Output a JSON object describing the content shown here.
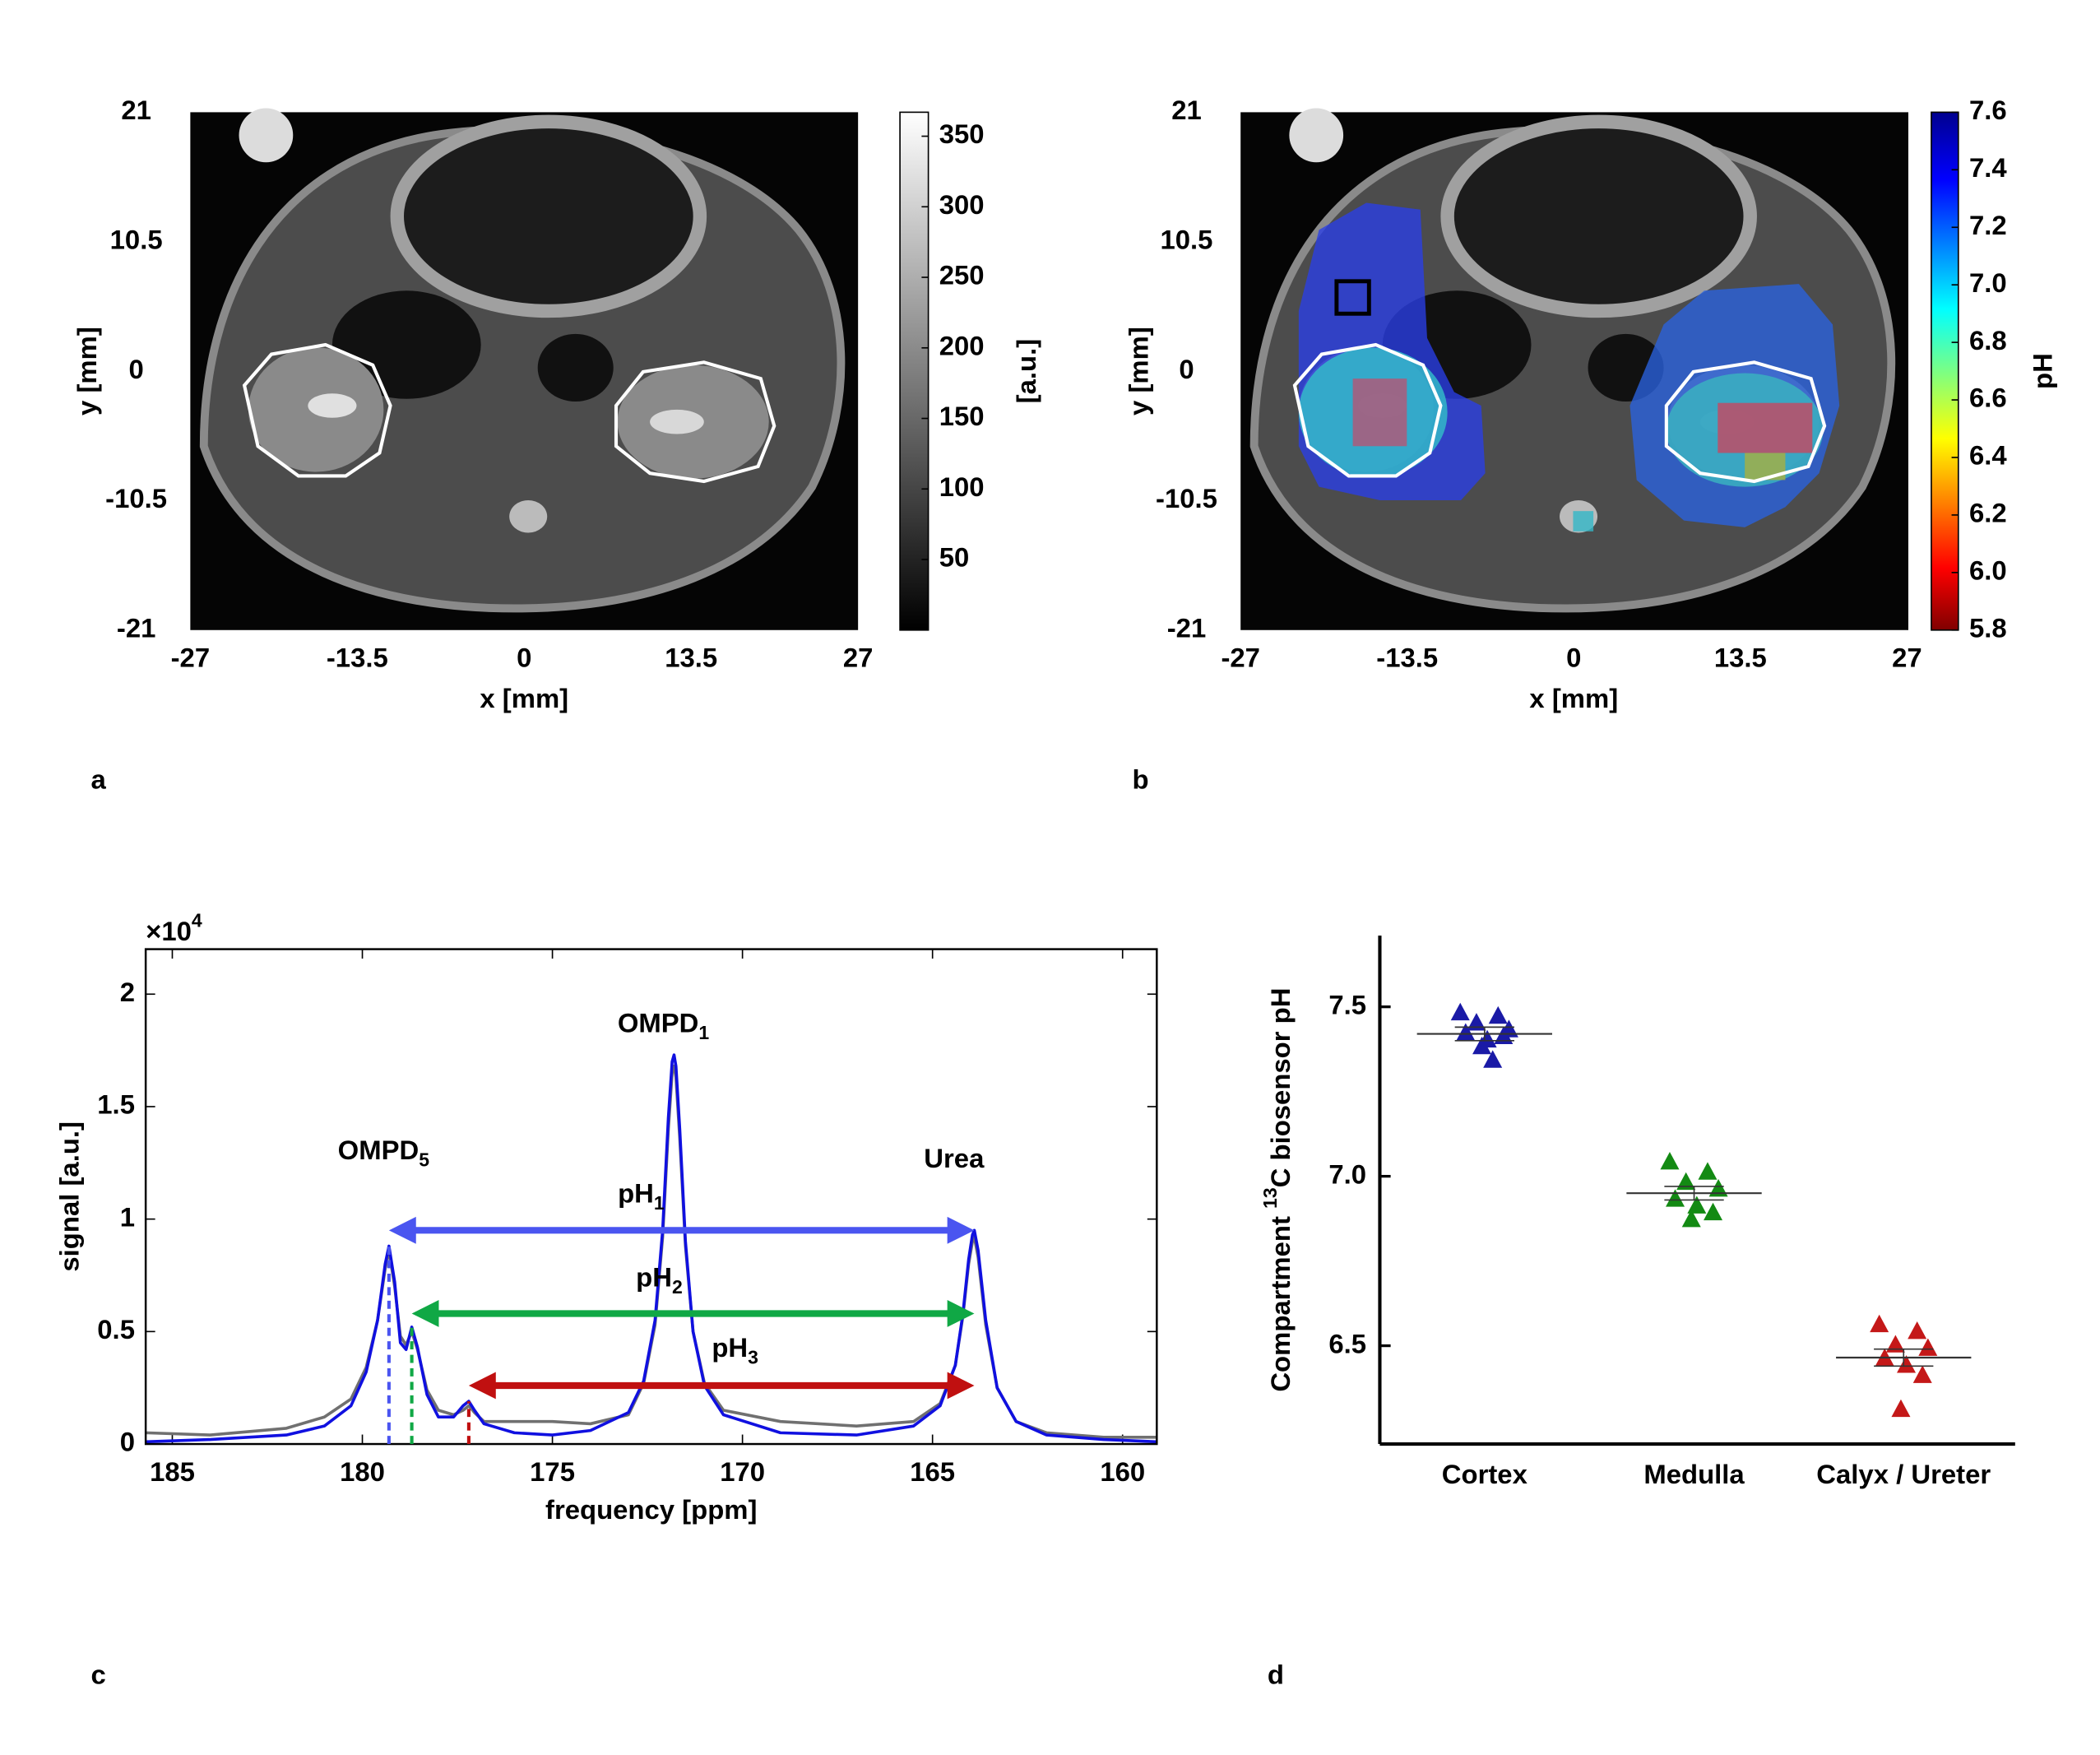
{
  "chart_data": [
    {
      "type": "image",
      "panel_label": "a",
      "xlabel": "x [mm]",
      "ylabel": "y [mm]",
      "xlim": [
        -27,
        27
      ],
      "ylim": [
        -21,
        21
      ],
      "xticks": [
        -27,
        -13.5,
        0,
        13.5,
        27
      ],
      "yticks": [
        -21,
        -10.5,
        0,
        10.5,
        21
      ],
      "colorbar": {
        "colormap": "gray",
        "clim": [
          0,
          367
        ],
        "ticks": [
          50,
          100,
          150,
          200,
          250,
          300,
          350
        ],
        "label": "[a.u.]"
      }
    },
    {
      "type": "image",
      "panel_label": "b",
      "xlabel": "x [mm]",
      "ylabel": "y [mm]",
      "xlim": [
        -27,
        27
      ],
      "ylim": [
        -21,
        21
      ],
      "xticks": [
        -27,
        -13.5,
        0,
        13.5,
        27
      ],
      "yticks": [
        -21,
        -10.5,
        0,
        10.5,
        21
      ],
      "colorbar": {
        "colormap": "jet",
        "clim": [
          5.8,
          7.6
        ],
        "ticks": [
          5.8,
          {
            "value": 6,
            "label": "6.0"
          },
          6.2,
          6.4,
          6.6,
          6.8,
          {
            "value": 7,
            "label": "7.0"
          },
          7.2,
          7.4,
          7.6
        ],
        "label": "pH"
      }
    },
    {
      "type": "line",
      "panel_label": "c",
      "xlabel": "frequency [ppm]",
      "ylabel": "signal [a.u.]",
      "y_multiplier": [
        "×10",
        "4"
      ],
      "xlim": [
        185.7,
        159.1
      ],
      "ylim": [
        0,
        2.2
      ],
      "xticks": [
        185,
        180,
        175,
        170,
        165,
        160
      ],
      "yticks": [
        0,
        0.5,
        1,
        1.5,
        2
      ],
      "x": [
        185.7,
        184,
        182,
        181,
        180.3,
        179.9,
        179.6,
        179.4,
        179.3,
        179.15,
        179.0,
        178.85,
        178.7,
        178.55,
        178.3,
        178,
        177.6,
        177.35,
        177.2,
        177.05,
        176.8,
        176,
        175,
        174,
        173,
        172.6,
        172.3,
        172.1,
        171.95,
        171.85,
        171.8,
        171.75,
        171.65,
        171.5,
        171.3,
        171,
        170.5,
        169,
        167,
        165.5,
        164.8,
        164.4,
        164.2,
        164.05,
        163.95,
        163.9,
        163.8,
        163.6,
        163.3,
        162.8,
        162,
        160.5,
        159.1
      ],
      "series": [
        {
          "color": "#707070",
          "values": [
            0.05,
            0.04,
            0.07,
            0.12,
            0.2,
            0.34,
            0.55,
            0.78,
            0.86,
            0.7,
            0.48,
            0.44,
            0.5,
            0.42,
            0.24,
            0.15,
            0.13,
            0.15,
            0.17,
            0.14,
            0.1,
            0.1,
            0.1,
            0.09,
            0.13,
            0.27,
            0.53,
            0.92,
            1.4,
            1.65,
            1.68,
            1.63,
            1.36,
            0.88,
            0.5,
            0.27,
            0.15,
            0.1,
            0.08,
            0.1,
            0.18,
            0.35,
            0.57,
            0.8,
            0.9,
            0.92,
            0.83,
            0.53,
            0.25,
            0.1,
            0.05,
            0.03,
            0.03
          ]
        },
        {
          "color": "#1010e0",
          "values": [
            0.01,
            0.02,
            0.04,
            0.08,
            0.17,
            0.32,
            0.55,
            0.8,
            0.88,
            0.72,
            0.45,
            0.42,
            0.52,
            0.43,
            0.22,
            0.12,
            0.12,
            0.17,
            0.19,
            0.15,
            0.09,
            0.05,
            0.04,
            0.06,
            0.14,
            0.28,
            0.55,
            0.95,
            1.45,
            1.7,
            1.73,
            1.68,
            1.4,
            0.9,
            0.5,
            0.26,
            0.13,
            0.05,
            0.04,
            0.08,
            0.17,
            0.35,
            0.58,
            0.82,
            0.93,
            0.95,
            0.86,
            0.55,
            0.25,
            0.1,
            0.04,
            0.02,
            0.01
          ]
        }
      ],
      "annotations": [
        [
          "OMPD",
          "5"
        ],
        [
          "OMPD",
          "1"
        ],
        [
          "Urea"
        ]
      ],
      "arrows": [
        {
          "label": [
            "pH",
            "1"
          ],
          "from": 179.3,
          "to": 163.9,
          "y": 0.95,
          "color": "#4a55f0"
        },
        {
          "label": [
            "pH",
            "2"
          ],
          "from": 178.7,
          "to": 163.9,
          "y": 0.58,
          "color": "#10a845"
        },
        {
          "label": [
            "pH",
            "3"
          ],
          "from": 177.2,
          "to": 163.9,
          "y": 0.26,
          "color": "#c01010"
        }
      ]
    },
    {
      "type": "scatter",
      "panel_label": "d",
      "ylabel": [
        "Compartment ",
        "13",
        "C biosensor pH"
      ],
      "categories": [
        "Cortex",
        "Medulla",
        "Calyx / Ureter"
      ],
      "colors": [
        "#1a1aa6",
        "#138a13",
        "#c41818"
      ],
      "ylim": [
        6.21,
        7.71
      ],
      "yticks": [
        6.5,
        {
          "value": 7,
          "label": "7.0"
        },
        7.5
      ],
      "values": [
        [
          7.48,
          7.47,
          7.45,
          7.43,
          7.42,
          7.4,
          7.41,
          7.38,
          7.34
        ],
        [
          7.04,
          7.01,
          6.98,
          6.96,
          6.93,
          6.91,
          6.89,
          6.87
        ],
        [
          6.56,
          6.54,
          6.5,
          6.49,
          6.46,
          6.44,
          6.41,
          6.31
        ]
      ],
      "means": [
        7.42,
        6.95,
        6.465
      ],
      "sems": [
        0.02,
        0.02,
        0.025
      ]
    }
  ]
}
